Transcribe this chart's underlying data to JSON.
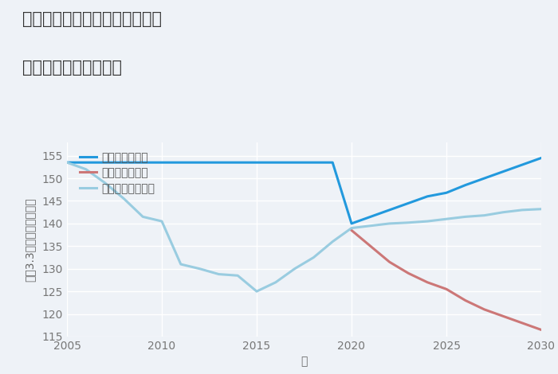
{
  "title_line1": "神奈川県川崎市高津区上作延の",
  "title_line2": "中古戸建ての価格推移",
  "xlabel": "年",
  "ylabel": "坪（3.3㎡）単価（万円）",
  "ylim": [
    115,
    158
  ],
  "xlim": [
    2005,
    2030
  ],
  "yticks": [
    115,
    120,
    125,
    130,
    135,
    140,
    145,
    150,
    155
  ],
  "xticks": [
    2005,
    2010,
    2015,
    2020,
    2025,
    2030
  ],
  "background_color": "#eef2f7",
  "plot_background": "#eef2f7",
  "grid_color": "#ffffff",
  "good_color": "#2299dd",
  "bad_color": "#cc7777",
  "normal_color": "#99cce0",
  "good_label": "グッドシナリオ",
  "bad_label": "バッドシナリオ",
  "normal_label": "ノーマルシナリオ",
  "good_x": [
    2005,
    2006,
    2007,
    2008,
    2009,
    2010,
    2011,
    2012,
    2013,
    2014,
    2015,
    2016,
    2017,
    2018,
    2019,
    2020,
    2021,
    2022,
    2023,
    2024,
    2025,
    2026,
    2027,
    2028,
    2029,
    2030
  ],
  "good_y": [
    153.5,
    153.5,
    153.5,
    153.5,
    153.5,
    153.5,
    153.5,
    153.5,
    153.5,
    153.5,
    153.5,
    153.5,
    153.5,
    153.5,
    153.5,
    140.0,
    141.5,
    143.0,
    144.5,
    146.0,
    146.8,
    148.5,
    150.0,
    151.5,
    153.0,
    154.5
  ],
  "bad_x": [
    2020,
    2021,
    2022,
    2023,
    2024,
    2025,
    2026,
    2027,
    2028,
    2029,
    2030
  ],
  "bad_y": [
    138.5,
    135.0,
    131.5,
    129.0,
    127.0,
    125.5,
    123.0,
    121.0,
    119.5,
    118.0,
    116.5
  ],
  "normal_x": [
    2005,
    2006,
    2007,
    2008,
    2009,
    2010,
    2011,
    2012,
    2013,
    2014,
    2015,
    2016,
    2017,
    2018,
    2019,
    2020,
    2021,
    2022,
    2023,
    2024,
    2025,
    2026,
    2027,
    2028,
    2029,
    2030
  ],
  "normal_y": [
    153.5,
    152.0,
    149.0,
    145.5,
    141.5,
    140.5,
    131.0,
    130.0,
    128.8,
    128.5,
    125.0,
    127.0,
    130.0,
    132.5,
    136.0,
    139.0,
    139.5,
    140.0,
    140.2,
    140.5,
    141.0,
    141.5,
    141.8,
    142.5,
    143.0,
    143.2
  ],
  "line_width": 2.2,
  "title_fontsize": 15,
  "label_fontsize": 10,
  "tick_fontsize": 10
}
